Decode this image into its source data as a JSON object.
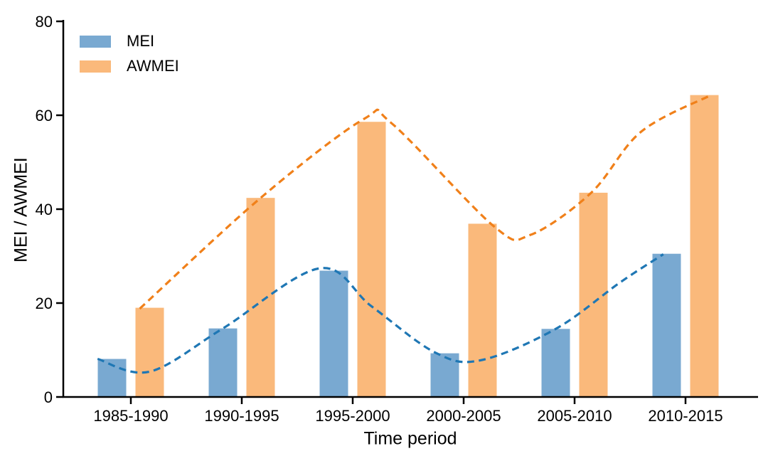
{
  "figure": {
    "background": "#ffffff",
    "axis_color": "#000000"
  },
  "chart_data": {
    "type": "bar",
    "title": "",
    "xlabel": "Time period",
    "ylabel": "MEI / AWMEI",
    "categories": [
      "1985-1990",
      "1990-1995",
      "1995-2000",
      "2000-2005",
      "2005-2010",
      "2010-2015"
    ],
    "series": [
      {
        "name": "MEI",
        "values": [
          8.1,
          14.6,
          26.9,
          9.3,
          14.5,
          30.5
        ],
        "bar_color": "#79A9D1",
        "line_color": "#1F77B4",
        "trend": [
          [
            -0.3,
            8.1
          ],
          [
            0.17,
            5.4
          ],
          [
            0.83,
            14.6
          ],
          [
            1.7,
            27.4
          ],
          [
            2.17,
            19.3
          ],
          [
            2.74,
            9.5
          ],
          [
            3.15,
            7.8
          ],
          [
            3.83,
            14.5
          ],
          [
            4.41,
            24.4
          ],
          [
            4.8,
            30.4
          ]
        ]
      },
      {
        "name": "AWMEI",
        "values": [
          19.0,
          42.4,
          58.6,
          36.9,
          43.5,
          64.3
        ],
        "bar_color": "#FAB97B",
        "line_color": "#F0801A",
        "trend": [
          [
            0.08,
            18.8
          ],
          [
            1.17,
            42.4
          ],
          [
            2.1,
            59.2
          ],
          [
            2.35,
            58.3
          ],
          [
            3.28,
            36.2
          ],
          [
            3.6,
            34.5
          ],
          [
            4.15,
            43.5
          ],
          [
            4.6,
            56.5
          ],
          [
            5.23,
            64.3
          ]
        ]
      }
    ],
    "ylim": [
      0,
      80
    ],
    "yticks": [
      0,
      20,
      40,
      60,
      80
    ],
    "grid": false,
    "legend_position": "upper left",
    "trend_style": "dashed spline overlay"
  }
}
